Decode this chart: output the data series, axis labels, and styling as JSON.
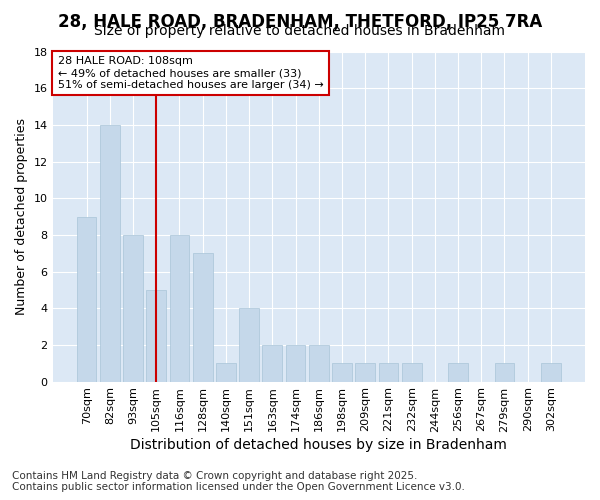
{
  "title1": "28, HALE ROAD, BRADENHAM, THETFORD, IP25 7RA",
  "title2": "Size of property relative to detached houses in Bradenham",
  "xlabel": "Distribution of detached houses by size in Bradenham",
  "ylabel": "Number of detached properties",
  "categories": [
    "70sqm",
    "82sqm",
    "93sqm",
    "105sqm",
    "116sqm",
    "128sqm",
    "140sqm",
    "151sqm",
    "163sqm",
    "174sqm",
    "186sqm",
    "198sqm",
    "209sqm",
    "221sqm",
    "232sqm",
    "244sqm",
    "256sqm",
    "267sqm",
    "279sqm",
    "290sqm",
    "302sqm"
  ],
  "values": [
    9,
    14,
    8,
    5,
    8,
    7,
    1,
    4,
    2,
    2,
    2,
    1,
    1,
    1,
    1,
    0,
    1,
    0,
    1,
    0,
    1
  ],
  "bar_color": "#c5d8ea",
  "bar_edge_color": "#a8c4d8",
  "marker_index": 3,
  "marker_label": "28 HALE ROAD: 108sqm",
  "annotation_line1": "← 49% of detached houses are smaller (33)",
  "annotation_line2": "51% of semi-detached houses are larger (34) →",
  "vline_color": "#cc0000",
  "ylim": [
    0,
    18
  ],
  "yticks": [
    0,
    2,
    4,
    6,
    8,
    10,
    12,
    14,
    16,
    18
  ],
  "footer1": "Contains HM Land Registry data © Crown copyright and database right 2025.",
  "footer2": "Contains public sector information licensed under the Open Government Licence v3.0.",
  "fig_bg_color": "#ffffff",
  "plot_bg_color": "#dce8f5",
  "grid_color": "#ffffff",
  "title1_fontsize": 12,
  "title2_fontsize": 10,
  "xlabel_fontsize": 10,
  "ylabel_fontsize": 9,
  "tick_fontsize": 8,
  "annot_fontsize": 8,
  "footer_fontsize": 7.5
}
